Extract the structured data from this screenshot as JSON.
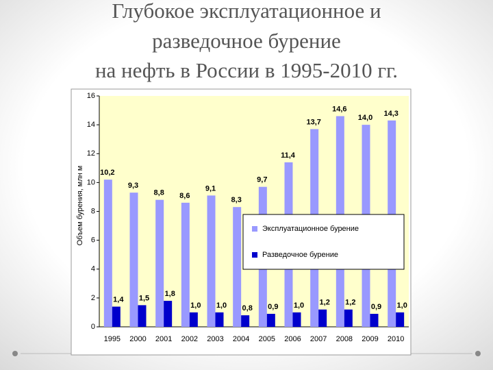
{
  "chart_data": {
    "type": "bar",
    "title": [
      "Глубокое эксплуатационное и",
      "разведочное бурение",
      "на нефть в России в 1995-2010 гг."
    ],
    "y_label": "Объем бурения, млн м",
    "categories": [
      "1995",
      "2000",
      "2001",
      "2002",
      "2003",
      "2004",
      "2005",
      "2006",
      "2007",
      "2008",
      "2009",
      "2010"
    ],
    "series": [
      {
        "name": "Эксплуатационное бурение",
        "color": "#9999ff",
        "values": [
          10.2,
          9.3,
          8.8,
          8.6,
          9.1,
          8.3,
          9.7,
          11.4,
          13.7,
          14.6,
          14.0,
          14.3
        ],
        "value_labels": [
          "10,2",
          "9,3",
          "8,8",
          "8,6",
          "9,1",
          "8,3",
          "9,7",
          "11,4",
          "13,7",
          "14,6",
          "14,0",
          "14,3"
        ]
      },
      {
        "name": "Разведочное бурение",
        "color": "#0000cc",
        "values": [
          1.4,
          1.5,
          1.8,
          1.0,
          1.0,
          0.8,
          0.9,
          1.0,
          1.2,
          1.2,
          0.9,
          1.0
        ],
        "value_labels": [
          "1,4",
          "1,5",
          "1,8",
          "1,0",
          "1,0",
          "0,8",
          "0,9",
          "1,0",
          "1,2",
          "1,2",
          "0,9",
          "1,0"
        ]
      }
    ],
    "ylim": [
      0,
      16
    ],
    "yticks": [
      0,
      2,
      4,
      6,
      8,
      10,
      12,
      14,
      16
    ],
    "grid": false
  }
}
